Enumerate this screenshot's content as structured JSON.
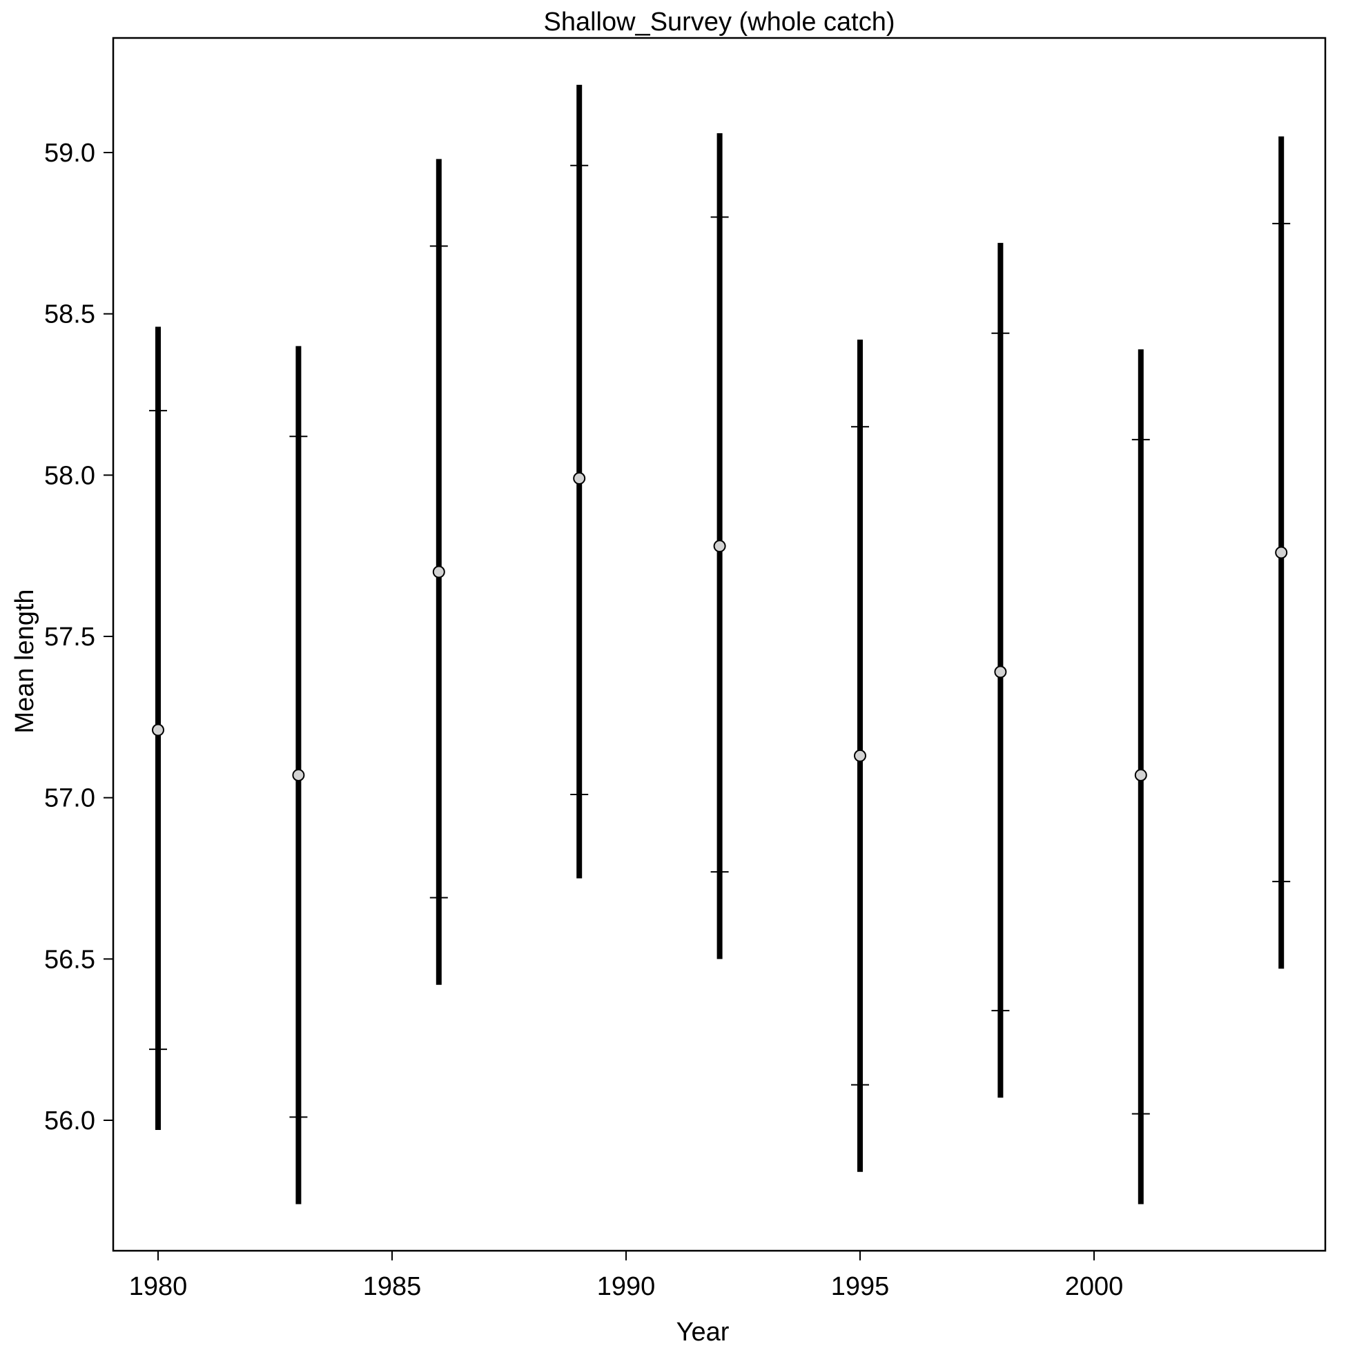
{
  "chart_data": {
    "type": "scatter",
    "title": "Shallow_Survey (whole catch)",
    "xlabel": "Year",
    "ylabel": "Mean length",
    "xlim": [
      1979,
      2005
    ],
    "ylim": [
      55.6,
      59.35
    ],
    "x_ticks": [
      "1980",
      "1985",
      "1990",
      "1995",
      "2000"
    ],
    "y_ticks": [
      "56.0",
      "56.5",
      "57.0",
      "57.5",
      "58.0",
      "58.5",
      "59.0"
    ],
    "grid": false,
    "legend": "none",
    "series": [
      {
        "points": [
          {
            "year": 1980,
            "mean": 57.21,
            "inner_low": 56.22,
            "inner_high": 58.2,
            "outer_low": 55.97,
            "outer_high": 58.46
          },
          {
            "year": 1983,
            "mean": 57.07,
            "inner_low": 56.01,
            "inner_high": 58.12,
            "outer_low": 55.74,
            "outer_high": 58.4
          },
          {
            "year": 1986,
            "mean": 57.7,
            "inner_low": 56.69,
            "inner_high": 58.71,
            "outer_low": 56.42,
            "outer_high": 58.98
          },
          {
            "year": 1989,
            "mean": 57.99,
            "inner_low": 57.01,
            "inner_high": 58.96,
            "outer_low": 56.75,
            "outer_high": 59.21
          },
          {
            "year": 1992,
            "mean": 57.78,
            "inner_low": 56.77,
            "inner_high": 58.8,
            "outer_low": 56.5,
            "outer_high": 59.06
          },
          {
            "year": 1995,
            "mean": 57.13,
            "inner_low": 56.11,
            "inner_high": 58.15,
            "outer_low": 55.84,
            "outer_high": 58.42
          },
          {
            "year": 1998,
            "mean": 57.39,
            "inner_low": 56.34,
            "inner_high": 58.44,
            "outer_low": 56.07,
            "outer_high": 58.72
          },
          {
            "year": 2001,
            "mean": 57.07,
            "inner_low": 56.02,
            "inner_high": 58.11,
            "outer_low": 55.74,
            "outer_high": 58.39
          },
          {
            "year": 2004,
            "mean": 57.76,
            "inner_low": 56.74,
            "inner_high": 58.78,
            "outer_low": 56.47,
            "outer_high": 59.05
          }
        ]
      }
    ],
    "colors": {
      "bar": "#000000",
      "point_fill": "#d3d3d3",
      "point_stroke": "#000000",
      "axis": "#000000"
    }
  }
}
